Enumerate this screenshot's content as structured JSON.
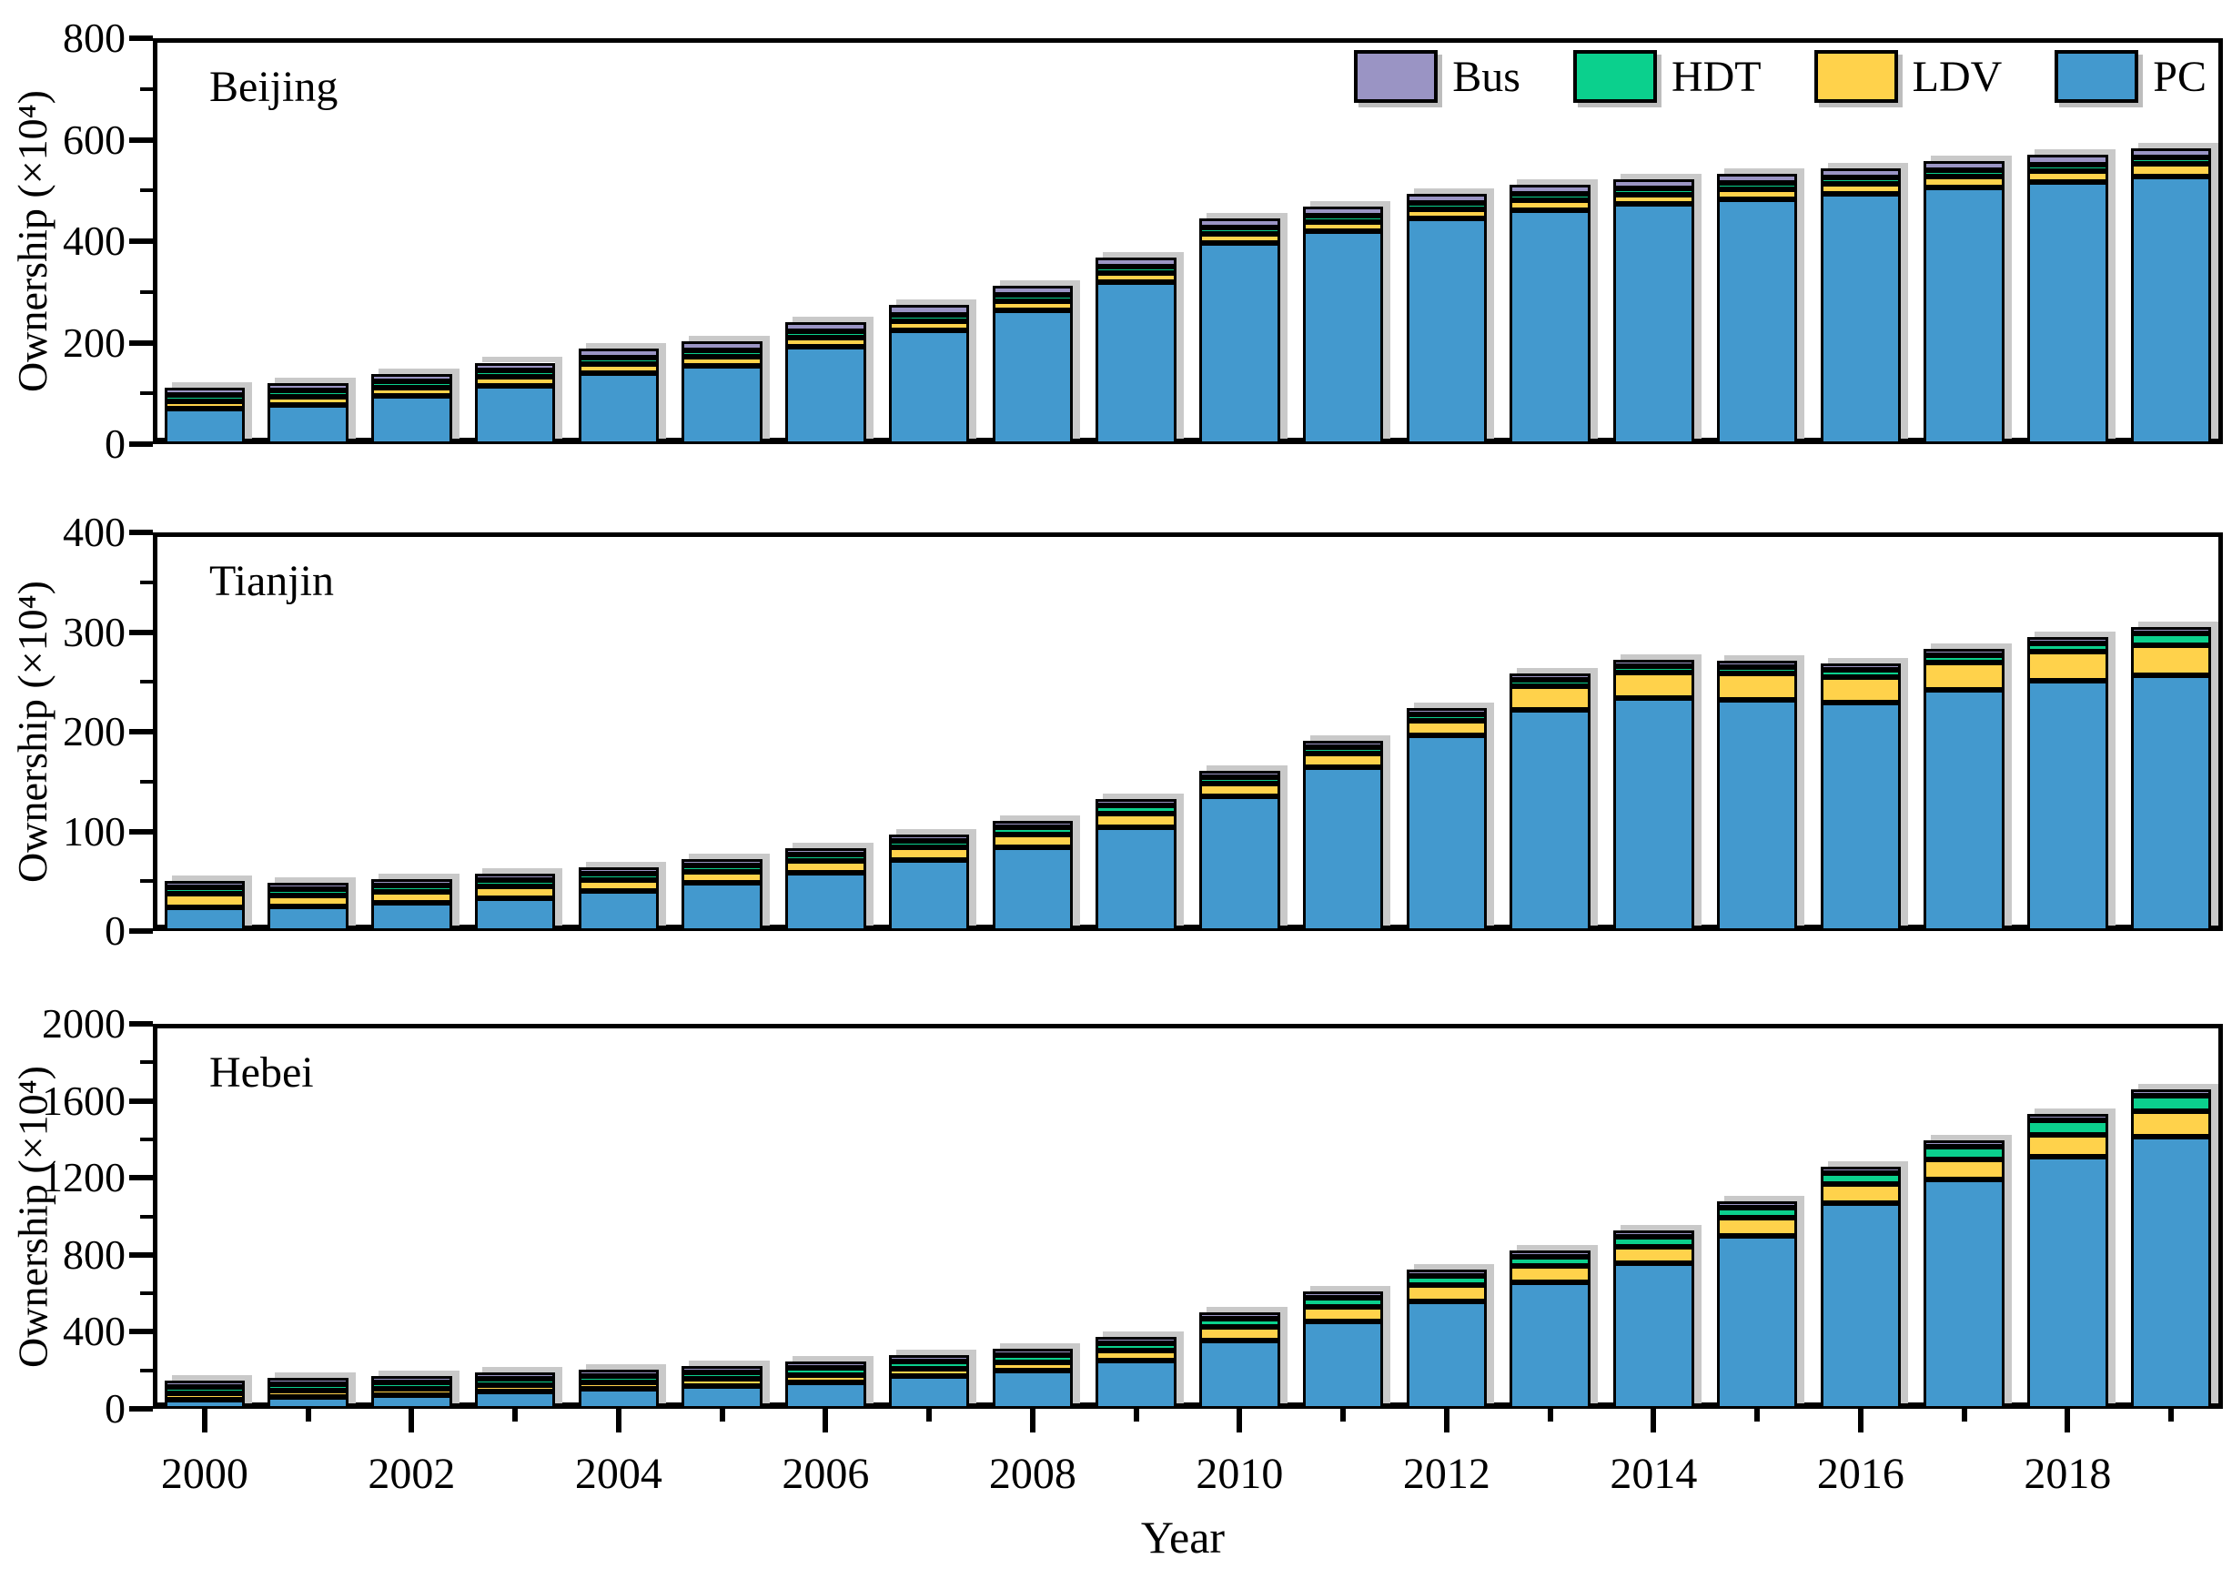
{
  "figure": {
    "xlabel": "Year",
    "ylabel": "Ownership (×10⁴)",
    "legend": [
      {
        "label": "Bus",
        "color": "#9A94C4"
      },
      {
        "label": "HDT",
        "color": "#0BD08D"
      },
      {
        "label": "LDV",
        "color": "#FFD24B"
      },
      {
        "label": "PC",
        "color": "#4399CE"
      }
    ],
    "colors": {
      "PC": "#4399CE",
      "LDV": "#FFD24B",
      "HDT": "#0BD08D",
      "Bus": "#9A94C4",
      "bar_edge": "#000000",
      "bar_shadow": "#C9C9C9"
    }
  },
  "chart_data": [
    {
      "type": "bar",
      "stacked": true,
      "title": "Beijing",
      "ylabel": "Ownership (×10⁴)",
      "ylim": [
        0,
        800
      ],
      "yticks": [
        0,
        200,
        400,
        600,
        800
      ],
      "yticks_minor": [
        100,
        300,
        500,
        700
      ],
      "grid": false,
      "categories": [
        2000,
        2001,
        2002,
        2003,
        2004,
        2005,
        2006,
        2007,
        2008,
        2009,
        2010,
        2011,
        2012,
        2013,
        2014,
        2015,
        2016,
        2017,
        2018,
        2019
      ],
      "series": [
        {
          "name": "PC",
          "color": "#4399CE",
          "values": [
            70,
            78,
            95,
            115,
            140,
            155,
            192,
            225,
            264,
            320,
            396,
            419,
            444,
            461,
            473,
            482,
            493,
            506,
            517,
            528
          ]
        },
        {
          "name": "LDV",
          "color": "#FFD24B",
          "values": [
            14,
            15,
            16,
            17,
            18,
            18,
            18,
            18,
            18,
            18,
            18,
            18,
            19,
            19,
            19,
            20,
            20,
            21,
            22,
            24
          ]
        },
        {
          "name": "HDT",
          "color": "#0BD08D",
          "values": [
            8,
            5,
            5,
            5,
            5,
            6,
            6,
            7,
            8,
            8,
            8,
            9,
            9,
            10,
            10,
            10,
            11,
            11,
            11,
            12
          ]
        },
        {
          "name": "Bus",
          "color": "#9A94C4",
          "values": [
            14,
            14,
            15,
            16,
            17,
            17,
            18,
            18,
            18,
            18,
            18,
            18,
            18,
            18,
            18,
            18,
            18,
            18,
            18,
            18
          ]
        }
      ]
    },
    {
      "type": "bar",
      "stacked": true,
      "title": "Tianjin",
      "ylabel": "Ownership (×10⁴)",
      "ylim": [
        0,
        400
      ],
      "yticks": [
        0,
        100,
        200,
        300,
        400
      ],
      "yticks_minor": [
        50,
        150,
        250,
        350
      ],
      "grid": false,
      "categories": [
        2000,
        2001,
        2002,
        2003,
        2004,
        2005,
        2006,
        2007,
        2008,
        2009,
        2010,
        2011,
        2012,
        2013,
        2014,
        2015,
        2016,
        2017,
        2018,
        2019
      ],
      "series": [
        {
          "name": "PC",
          "color": "#4399CE",
          "values": [
            24,
            25,
            28,
            33,
            40,
            48,
            58,
            71,
            84,
            104,
            135,
            164,
            196,
            222,
            234,
            232,
            229,
            242,
            251,
            257
          ]
        },
        {
          "name": "LDV",
          "color": "#FFD24B",
          "values": [
            13,
            11,
            11,
            12,
            11,
            11,
            12,
            13,
            13,
            14,
            13,
            14,
            15,
            24,
            25,
            26,
            26,
            27,
            29,
            30
          ]
        },
        {
          "name": "HDT",
          "color": "#0BD08D",
          "values": [
            6,
            5,
            5,
            6,
            5,
            5,
            6,
            6,
            7,
            8,
            5,
            5,
            4,
            5,
            5,
            5,
            7,
            8,
            9,
            12
          ]
        },
        {
          "name": "Bus",
          "color": "#9A94C4",
          "values": [
            2,
            2,
            2,
            2,
            2,
            2,
            2,
            2,
            2,
            2,
            2,
            2,
            2,
            3,
            3,
            3,
            3,
            3,
            3,
            3
          ]
        }
      ]
    },
    {
      "type": "bar",
      "stacked": true,
      "title": "Hebei",
      "ylabel": "Ownership (×10⁴)",
      "ylim": [
        0,
        2000
      ],
      "yticks": [
        0,
        400,
        800,
        1200,
        1600,
        2000
      ],
      "yticks_minor": [
        200,
        600,
        1000,
        1400,
        1800
      ],
      "grid": false,
      "categories": [
        2000,
        2001,
        2002,
        2003,
        2004,
        2005,
        2006,
        2007,
        2008,
        2009,
        2010,
        2011,
        2012,
        2013,
        2014,
        2015,
        2016,
        2017,
        2018,
        2019
      ],
      "series": [
        {
          "name": "PC",
          "color": "#4399CE",
          "values": [
            45,
            62,
            72,
            88,
            103,
            118,
            138,
            168,
            198,
            250,
            355,
            455,
            560,
            655,
            755,
            900,
            1070,
            1190,
            1310,
            1415
          ]
        },
        {
          "name": "LDV",
          "color": "#FFD24B",
          "values": [
            26,
            30,
            31,
            33,
            35,
            37,
            39,
            41,
            44,
            52,
            70,
            75,
            82,
            85,
            88,
            92,
            98,
            105,
            115,
            130
          ]
        },
        {
          "name": "HDT",
          "color": "#0BD08D",
          "values": [
            18,
            25,
            28,
            30,
            32,
            34,
            35,
            37,
            38,
            40,
            42,
            45,
            48,
            50,
            52,
            54,
            58,
            65,
            72,
            80
          ]
        },
        {
          "name": "Bus",
          "color": "#9A94C4",
          "values": [
            9,
            11,
            12,
            13,
            14,
            14,
            15,
            15,
            15,
            15,
            15,
            15,
            16,
            16,
            17,
            17,
            17,
            18,
            18,
            18
          ]
        }
      ]
    }
  ],
  "x_axis": {
    "tick_labels": [
      "2000",
      "2002",
      "2004",
      "2006",
      "2008",
      "2010",
      "2012",
      "2014",
      "2016",
      "2018"
    ],
    "label": "Year"
  }
}
